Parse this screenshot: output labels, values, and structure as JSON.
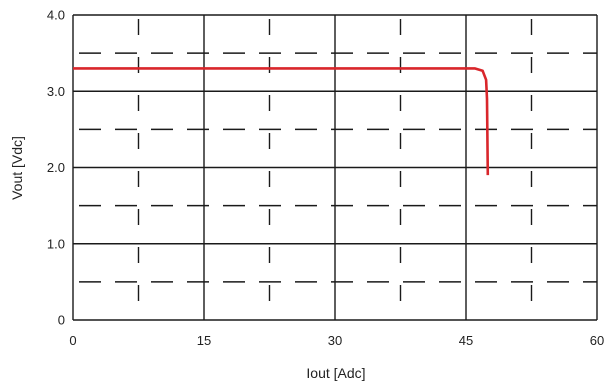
{
  "chart_data": {
    "type": "line",
    "title": "",
    "xlabel": "Iout [Adc]",
    "ylabel": "Vout [Vdc]",
    "xlim": [
      0,
      60
    ],
    "ylim": [
      0,
      4.0
    ],
    "x_ticks": [
      0,
      15,
      30,
      45,
      60
    ],
    "x_tick_labels": [
      "0",
      "15",
      "30",
      "45",
      "60"
    ],
    "y_ticks": [
      0,
      1.0,
      2.0,
      3.0,
      4.0
    ],
    "y_tick_labels": [
      "0",
      "1.0",
      "2.0",
      "3.0",
      "4.0"
    ],
    "grid": {
      "major_solid": true,
      "minor_dashed": true,
      "x_minor_step": 7.5,
      "y_minor_step": 0.5
    },
    "legend": "none",
    "series": [
      {
        "color": "#d9262b",
        "points": [
          [
            0,
            3.3
          ],
          [
            46.0,
            3.3
          ],
          [
            46.9,
            3.27
          ],
          [
            47.3,
            3.15
          ],
          [
            47.4,
            2.9
          ],
          [
            47.5,
            1.9
          ]
        ]
      }
    ]
  },
  "colors": {
    "grid_major": "#1a1a1a",
    "grid_minor": "#1a1a1a",
    "series": "#d9262b",
    "text": "#222222"
  }
}
